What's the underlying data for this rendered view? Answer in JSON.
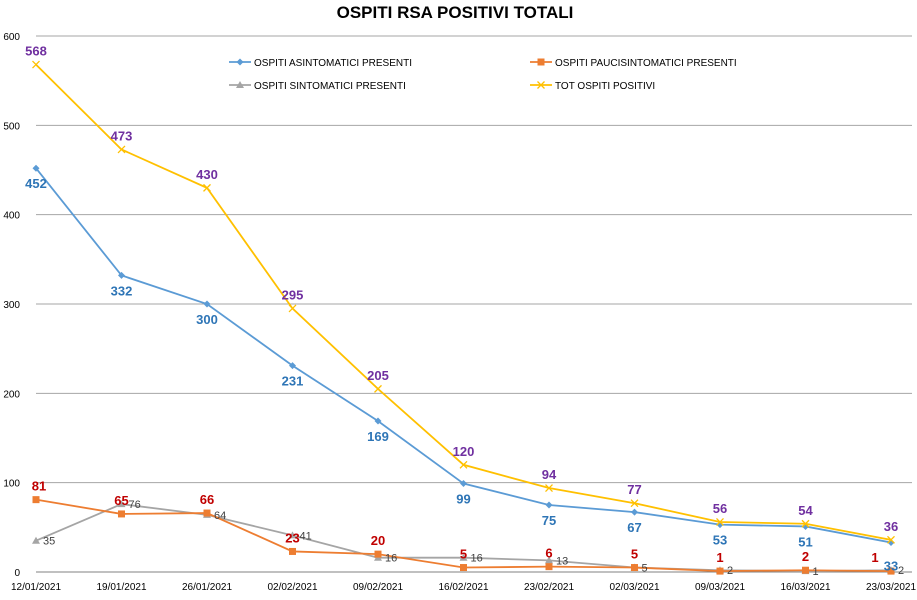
{
  "chart_data": {
    "type": "line",
    "title": "OSPITI RSA POSITIVI TOTALI",
    "xlabel": "",
    "ylabel": "",
    "ylim": [
      0,
      600
    ],
    "yticks": [
      0,
      100,
      200,
      300,
      400,
      500,
      600
    ],
    "grid": true,
    "legend_placement": "top-center",
    "categories": [
      "12/01/2021",
      "19/01/2021",
      "26/01/2021",
      "02/02/2021",
      "09/02/2021",
      "16/02/2021",
      "23/02/2021",
      "02/03/2021",
      "09/03/2021",
      "16/03/2021",
      "23/03/2021"
    ],
    "series": [
      {
        "name": "OSPITI ASINTOMATICI PRESENTI",
        "color": "#5B9BD5",
        "label_color": "#2E75B6",
        "marker": "diamond",
        "values": [
          452,
          332,
          300,
          231,
          169,
          99,
          75,
          67,
          53,
          51,
          33
        ]
      },
      {
        "name": "OSPITI PAUCISINTOMATICI PRESENTI",
        "color": "#ED7D31",
        "label_color": "#C00000",
        "marker": "square",
        "values": [
          81,
          65,
          66,
          23,
          20,
          5,
          6,
          5,
          1,
          2,
          1
        ]
      },
      {
        "name": "OSPITI SINTOMATICI PRESENTI",
        "color": "#A5A5A5",
        "label_color": "#404040",
        "marker": "triangle",
        "values": [
          35,
          76,
          64,
          41,
          16,
          16,
          13,
          5,
          2,
          1,
          2
        ]
      },
      {
        "name": "TOT OSPITI POSITIVI",
        "color": "#FFC000",
        "label_color": "#7030A0",
        "marker": "x",
        "values": [
          568,
          473,
          430,
          295,
          205,
          120,
          94,
          77,
          56,
          54,
          36
        ]
      }
    ]
  }
}
